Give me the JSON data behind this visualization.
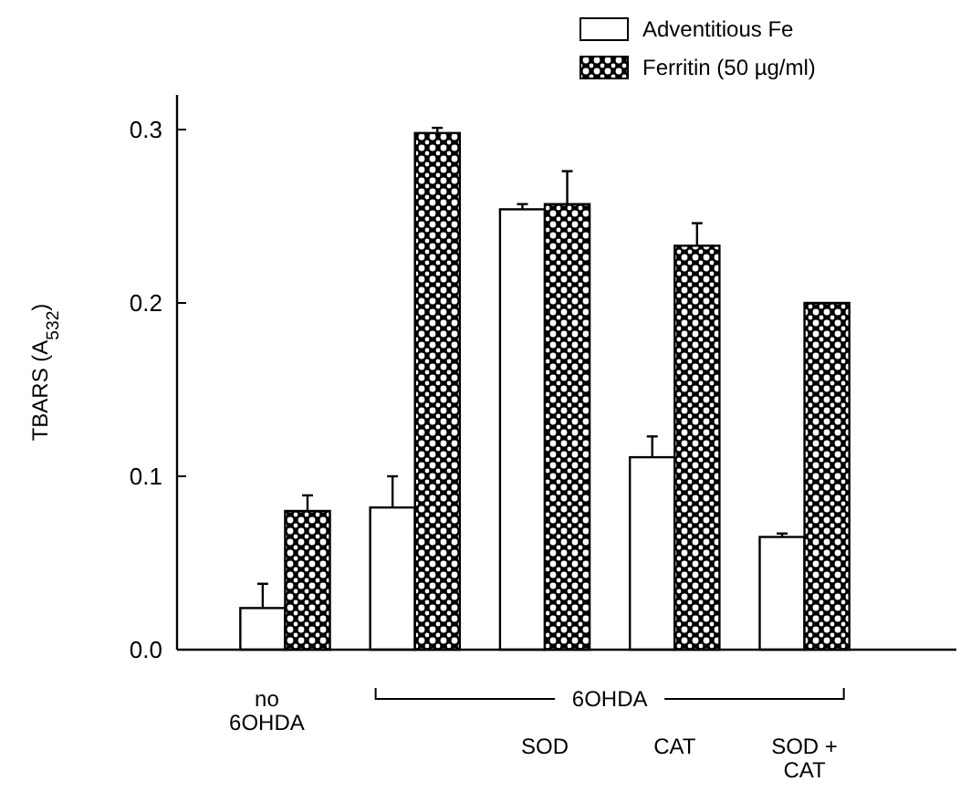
{
  "chart_data": {
    "type": "bar",
    "ylabel": "TBARS (A$_{532}$)",
    "categories": [
      "no 6OHDA",
      null,
      "SOD",
      "CAT",
      "SOD + CAT"
    ],
    "series": [
      {
        "name": "Adventitious Fe",
        "color": "#ffffff",
        "values": [
          0.024,
          0.082,
          0.254,
          0.111,
          0.065
        ],
        "errors": [
          0.014,
          0.018,
          0.003,
          0.012,
          0.002
        ]
      },
      {
        "name": "Ferritin (50 µg/ml)",
        "color": "#000000",
        "values": [
          0.08,
          0.298,
          0.257,
          0.233,
          0.2
        ],
        "errors": [
          0.009,
          0.003,
          0.019,
          0.013,
          null
        ]
      }
    ],
    "ylim": [
      0,
      0.32
    ],
    "yticks": [
      {
        "value": 0,
        "label": "0.0"
      },
      {
        "value": 0.1,
        "label": "0.1"
      },
      {
        "value": 0.2,
        "label": "0.2"
      },
      {
        "value": 0.3,
        "label": "0.3"
      }
    ],
    "annotations": [
      "6OHDA"
    ],
    "legend": "top right",
    "grid": false
  }
}
